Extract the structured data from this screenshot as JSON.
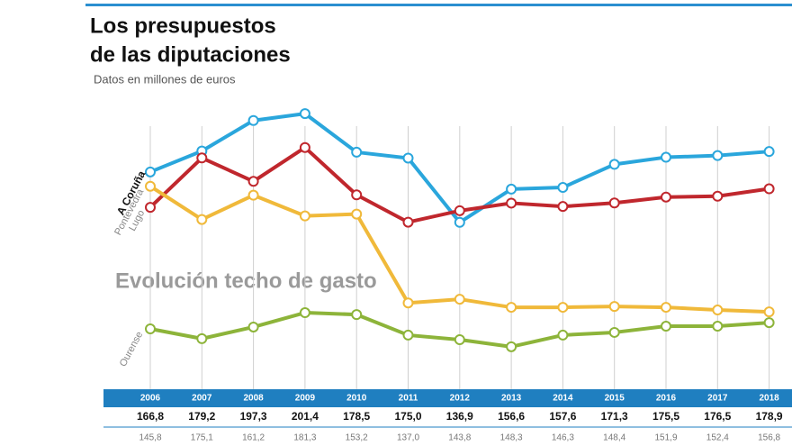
{
  "chart_data": {
    "type": "line",
    "title": [
      "Los presupuestos",
      "de las diputaciones"
    ],
    "subtitle": "Datos en millones de euros",
    "annotation": "Evolución techo de gasto",
    "categories": [
      "2006",
      "2007",
      "2008",
      "2009",
      "2010",
      "2011",
      "2012",
      "2013",
      "2014",
      "2015",
      "2016",
      "2017",
      "2018"
    ],
    "ylim": [
      55,
      210
    ],
    "grid": true,
    "series": [
      {
        "name": "A Coruña",
        "color": "#2aa6dc",
        "values": [
          166.8,
          179.2,
          197.3,
          201.4,
          178.5,
          175.0,
          136.9,
          156.6,
          157.6,
          171.3,
          175.5,
          176.5,
          178.9
        ],
        "value_labels": [
          "166,8",
          "179,2",
          "197,3",
          "201,4",
          "178,5",
          "175,0",
          "136,9",
          "156,6",
          "157,6",
          "171,3",
          "175,5",
          "176,5",
          "178,9"
        ]
      },
      {
        "name": "Lugo",
        "color": "#c0272d",
        "values": [
          145.8,
          175.1,
          161.2,
          181.3,
          153.2,
          137.0,
          143.8,
          148.3,
          146.3,
          148.4,
          151.9,
          152.4,
          156.8
        ],
        "value_labels": [
          "145,8",
          "175,1",
          "161,2",
          "181,3",
          "153,2",
          "137,0",
          "143,8",
          "148,3",
          "146,3",
          "148,4",
          "151,9",
          "152,4",
          "156,8"
        ]
      },
      {
        "name": "Pontevedra",
        "color": "#f0b93a",
        "values": [
          158.3,
          138.6,
          153.0,
          140.7,
          141.8,
          89.1,
          91.3,
          86.5,
          86.5,
          87.0,
          86.5,
          84.9,
          83.8
        ]
      },
      {
        "name": "Ourense",
        "color": "#8db43a",
        "values": [
          73.7,
          67.9,
          74.8,
          83.3,
          82.2,
          70.0,
          67.3,
          63.1,
          70.0,
          71.6,
          75.3,
          75.3,
          77.4
        ]
      }
    ]
  }
}
